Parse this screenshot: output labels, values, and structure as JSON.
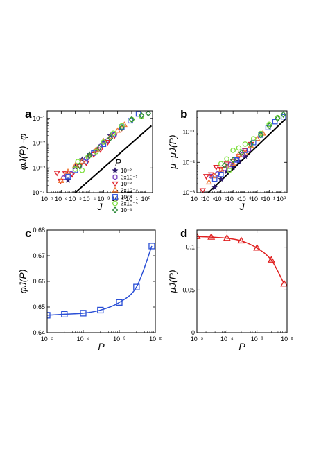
{
  "panels": {
    "a": {
      "label": "a"
    },
    "b": {
      "label": "b"
    },
    "c": {
      "label": "c"
    },
    "d": {
      "label": "d"
    }
  },
  "legend": {
    "title": "P",
    "entries": [
      {
        "label": "10⁻²",
        "marker": "star",
        "color": "#2d1a6b"
      },
      {
        "label": "3x10⁻³",
        "marker": "hexagon",
        "color": "#7a3fbf"
      },
      {
        "label": "10⁻³",
        "marker": "triangle-down",
        "color": "#e0202a"
      },
      {
        "label": "3x10⁻⁴",
        "marker": "triangle-up",
        "color": "#f07a3a"
      },
      {
        "label": "10⁻⁴",
        "marker": "square",
        "color": "#3355dd"
      },
      {
        "label": "3x10⁻⁵",
        "marker": "circle",
        "color": "#7fe040"
      },
      {
        "label": "10⁻⁵",
        "marker": "diamond",
        "color": "#2e8b3a"
      }
    ]
  },
  "chart_data": [
    {
      "id": "a",
      "type": "scatter",
      "title": "",
      "xlabel": "J",
      "ylabel": "φJ(P) -φ",
      "xscale": "log",
      "yscale": "log",
      "xlim": [
        1e-07,
        3
      ],
      "ylim": [
        0.0001,
        0.2
      ],
      "xticks": [
        {
          "v": 1e-07,
          "label": "10⁻⁷"
        },
        {
          "v": 1e-06,
          "label": "10⁻⁶"
        },
        {
          "v": 1e-05,
          "label": "10⁻⁵"
        },
        {
          "v": 0.0001,
          "label": "10⁻⁴"
        },
        {
          "v": 0.001,
          "label": "10⁻³"
        },
        {
          "v": 0.01,
          "label": "10⁻²"
        },
        {
          "v": 0.1,
          "label": "10⁻¹"
        },
        {
          "v": 1,
          "label": "10⁰"
        }
      ],
      "yticks": [
        {
          "v": 0.0001,
          "label": "10⁻⁴"
        },
        {
          "v": 0.001,
          "label": "10⁻³"
        },
        {
          "v": 0.01,
          "label": "10⁻²"
        },
        {
          "v": 0.1,
          "label": "10⁻¹"
        }
      ],
      "fit": {
        "coef": 0.032,
        "exp": 0.5,
        "x_range": [
          2e-07,
          2.5
        ],
        "color": "#000000"
      },
      "series": [
        {
          "name": "10⁻²",
          "marker": "star",
          "color": "#2d1a6b",
          "x": [
            3e-06,
            1e-05,
            3e-05,
            0.0001,
            0.0003,
            0.001,
            0.003
          ],
          "y": [
            0.00032,
            0.0011,
            0.0022,
            0.0035,
            0.0052,
            0.011,
            0.02
          ]
        },
        {
          "name": "3x10⁻³",
          "marker": "hexagon",
          "color": "#7a3fbf",
          "x": [
            1.5e-06,
            5e-06,
            2e-05,
            6e-05,
            0.0002,
            0.0006,
            0.002,
            0.006
          ],
          "y": [
            0.0004,
            0.0006,
            0.0012,
            0.0024,
            0.0038,
            0.0075,
            0.013,
            0.022
          ]
        },
        {
          "name": "10⁻³",
          "marker": "triangle-down",
          "color": "#e0202a",
          "x": [
            5e-07,
            9e-07,
            2e-06,
            6e-06,
            2e-05,
            6e-05,
            0.0002,
            0.0006,
            0.002,
            0.006,
            0.02
          ],
          "y": [
            0.00063,
            0.0003,
            0.0006,
            0.00055,
            0.0012,
            0.0016,
            0.0035,
            0.0055,
            0.011,
            0.02,
            0.04
          ]
        },
        {
          "name": "3x10⁻⁴",
          "marker": "triangle-up",
          "color": "#f07a3a",
          "x": [
            1e-06,
            3e-06,
            1e-05,
            3e-05,
            0.0001,
            0.0003,
            0.001,
            0.003,
            0.01,
            0.03
          ],
          "y": [
            0.0003,
            0.0007,
            0.00125,
            0.0018,
            0.0032,
            0.0055,
            0.012,
            0.018,
            0.032,
            0.055
          ]
        },
        {
          "name": "10⁻⁴",
          "marker": "square",
          "color": "#3355dd",
          "x": [
            3e-06,
            1e-05,
            5e-05,
            0.0002,
            0.001,
            0.005,
            0.02,
            0.08,
            0.3
          ],
          "y": [
            0.00045,
            0.0008,
            0.0018,
            0.004,
            0.009,
            0.022,
            0.045,
            0.08,
            0.15
          ]
        },
        {
          "name": "3x10⁻⁵",
          "marker": "circle",
          "color": "#7fe040",
          "x": [
            1e-05,
            1.5e-05,
            3e-05,
            8e-05,
            0.0003,
            0.001,
            0.005,
            0.02,
            0.1,
            0.5
          ],
          "y": [
            0.0009,
            0.0018,
            0.0008,
            0.0028,
            0.0045,
            0.011,
            0.025,
            0.05,
            0.09,
            0.12
          ]
        },
        {
          "name": "10⁻⁵",
          "marker": "diamond",
          "color": "#2e8b3a",
          "x": [
            2e-05,
            0.0001,
            0.0005,
            0.003,
            0.02,
            0.1,
            0.5,
            1.5
          ],
          "y": [
            0.0012,
            0.0032,
            0.0065,
            0.016,
            0.042,
            0.09,
            0.13,
            0.16
          ]
        }
      ]
    },
    {
      "id": "b",
      "type": "scatter",
      "title": "",
      "xlabel": "J",
      "ylabel": "μ−μJ(P)",
      "xscale": "log",
      "yscale": "log",
      "xlim": [
        1e-07,
        3
      ],
      "ylim": [
        0.001,
        0.5
      ],
      "xticks": [
        {
          "v": 1e-07,
          "label": "10⁻⁷"
        },
        {
          "v": 1e-06,
          "label": "10⁻⁶"
        },
        {
          "v": 1e-05,
          "label": "10⁻⁵"
        },
        {
          "v": 0.0001,
          "label": "10⁻⁴"
        },
        {
          "v": 0.001,
          "label": "10⁻³"
        },
        {
          "v": 0.01,
          "label": "10⁻²"
        },
        {
          "v": 0.1,
          "label": "10⁻¹"
        },
        {
          "v": 1,
          "label": "10⁰"
        }
      ],
      "yticks": [
        {
          "v": 0.001,
          "label": "10⁻³"
        },
        {
          "v": 0.01,
          "label": "10⁻²"
        },
        {
          "v": 0.1,
          "label": "10⁻¹"
        }
      ],
      "fit": {
        "coef": 0.2,
        "exp": 0.38,
        "x_range": [
          2e-07,
          2.5
        ],
        "color": "#000000"
      },
      "series": [
        {
          "name": "10⁻²",
          "marker": "star",
          "color": "#2d1a6b",
          "x": [
            3e-06,
            1e-05,
            3e-05,
            0.0001,
            0.0003,
            0.001
          ],
          "y": [
            0.0015,
            0.0028,
            0.005,
            0.007,
            0.011,
            0.016
          ]
        },
        {
          "name": "3x10⁻³",
          "marker": "hexagon",
          "color": "#7a3fbf",
          "x": [
            1.5e-06,
            5e-06,
            2e-05,
            6e-05,
            0.0002,
            0.0006,
            0.002
          ],
          "y": [
            0.0035,
            0.0042,
            0.0062,
            0.0085,
            0.012,
            0.018,
            0.026
          ]
        },
        {
          "name": "10⁻³",
          "marker": "triangle-down",
          "color": "#e0202a",
          "x": [
            3e-07,
            6e-07,
            1.5e-06,
            4e-06,
            1e-05,
            3e-05,
            0.0001,
            0.0003,
            0.001,
            0.003
          ],
          "y": [
            0.0012,
            0.0035,
            0.004,
            0.007,
            0.006,
            0.009,
            0.011,
            0.016,
            0.025,
            0.04
          ]
        },
        {
          "name": "3x10⁻⁴",
          "marker": "triangle-up",
          "color": "#f07a3a",
          "x": [
            1e-06,
            3e-06,
            1e-05,
            3e-05,
            0.0001,
            0.0003,
            0.001,
            0.003,
            0.01,
            0.03
          ],
          "y": [
            0.0022,
            0.0035,
            0.0055,
            0.0075,
            0.009,
            0.018,
            0.02,
            0.035,
            0.06,
            0.09
          ]
        },
        {
          "name": "10⁻⁴",
          "marker": "square",
          "color": "#3355dd",
          "x": [
            3e-06,
            1e-05,
            5e-05,
            0.0002,
            0.001,
            0.005,
            0.02,
            0.08,
            0.3,
            1.5
          ],
          "y": [
            0.0028,
            0.004,
            0.0075,
            0.012,
            0.025,
            0.045,
            0.08,
            0.14,
            0.22,
            0.32
          ]
        },
        {
          "name": "3x10⁻⁵",
          "marker": "circle",
          "color": "#7fe040",
          "x": [
            1e-05,
            3e-05,
            5e-05,
            0.0001,
            0.0003,
            0.001,
            0.005,
            0.02,
            0.1,
            0.5
          ],
          "y": [
            0.009,
            0.013,
            0.0055,
            0.025,
            0.03,
            0.04,
            0.06,
            0.09,
            0.18,
            0.3
          ]
        },
        {
          "name": "10⁻⁵",
          "marker": "diamond",
          "color": "#2e8b3a",
          "x": [
            2e-05,
            0.0001,
            0.0005,
            0.003,
            0.02,
            0.1,
            0.5,
            1.5
          ],
          "y": [
            0.008,
            0.012,
            0.021,
            0.04,
            0.08,
            0.16,
            0.28,
            0.38
          ]
        }
      ]
    },
    {
      "id": "c",
      "type": "line",
      "title": "",
      "xlabel": "P",
      "ylabel": "φJ(P)",
      "xscale": "log",
      "yscale": "linear",
      "xlim": [
        1e-05,
        0.01
      ],
      "ylim": [
        0.64,
        0.68
      ],
      "xticks": [
        {
          "v": 1e-05,
          "label": "10⁻⁵"
        },
        {
          "v": 0.0001,
          "label": "10⁻⁴"
        },
        {
          "v": 0.001,
          "label": "10⁻³"
        },
        {
          "v": 0.01,
          "label": "10⁻²"
        }
      ],
      "yticks": [
        {
          "v": 0.64,
          "label": "0.64"
        },
        {
          "v": 0.65,
          "label": "0.65"
        },
        {
          "v": 0.66,
          "label": "0.66"
        },
        {
          "v": 0.67,
          "label": "0.67"
        },
        {
          "v": 0.68,
          "label": "0.68"
        }
      ],
      "series": [
        {
          "name": "",
          "marker": "square",
          "color": "#2a4fd6",
          "x": [
            1e-05,
            3e-05,
            0.0001,
            0.0003,
            0.001,
            0.003,
            0.008
          ],
          "y": [
            0.6468,
            0.6472,
            0.6476,
            0.6488,
            0.6518,
            0.6578,
            0.6738
          ]
        }
      ]
    },
    {
      "id": "d",
      "type": "line",
      "title": "",
      "xlabel": "P",
      "ylabel": "μJ(P)",
      "xscale": "log",
      "yscale": "linear",
      "xlim": [
        1e-05,
        0.01
      ],
      "ylim": [
        0,
        0.12
      ],
      "xticks": [
        {
          "v": 1e-05,
          "label": "10⁻⁵"
        },
        {
          "v": 0.0001,
          "label": "10⁻⁴"
        },
        {
          "v": 0.001,
          "label": "10⁻³"
        },
        {
          "v": 0.01,
          "label": "10⁻²"
        }
      ],
      "yticks": [
        {
          "v": 0,
          "label": "0"
        },
        {
          "v": 0.05,
          "label": "0.05"
        },
        {
          "v": 0.1,
          "label": "0.1"
        }
      ],
      "series": [
        {
          "name": "",
          "marker": "triangle-up",
          "color": "#e02020",
          "x": [
            1e-05,
            3e-05,
            0.0001,
            0.0003,
            0.001,
            0.003,
            0.008
          ],
          "y": [
            0.1125,
            0.1118,
            0.1105,
            0.1075,
            0.099,
            0.085,
            0.057
          ]
        }
      ]
    }
  ]
}
